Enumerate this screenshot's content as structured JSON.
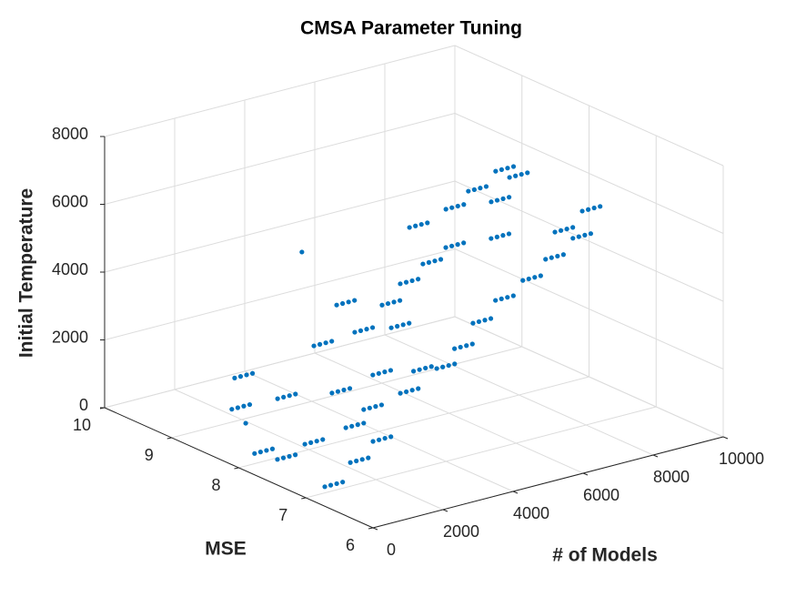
{
  "chart_data": {
    "type": "scatter3d",
    "title": "CMSA Parameter Tuning",
    "xlabel": "# of Models",
    "ylabel": "MSE",
    "zlabel": "Initial Temperature",
    "xlim": [
      0,
      10000
    ],
    "ylim": [
      6,
      10
    ],
    "zlim": [
      0,
      8000
    ],
    "xticks": [
      0,
      2000,
      4000,
      6000,
      8000,
      10000
    ],
    "yticks": [
      6,
      7,
      8,
      9,
      10
    ],
    "zticks": [
      0,
      2000,
      4000,
      6000,
      8000
    ],
    "grid": true,
    "series": [
      {
        "color": "#0072BD",
        "x": [
          2180,
          2350,
          2520,
          2690,
          2100,
          2270,
          2440,
          2610,
          2640,
          2810,
          2980,
          3150,
          450,
          620,
          790,
          960,
          720,
          890,
          1060,
          1230,
          310,
          480,
          650,
          820,
          1120,
          1290,
          1460,
          1630,
          1270,
          1440,
          1610,
          1780,
          2300,
          2470,
          2640,
          2810,
          2290,
          2460,
          2630,
          2800,
          2800,
          2970,
          3140,
          3310,
          2660,
          2830,
          3000,
          3170,
          2910,
          3080,
          3250,
          3420,
          3060,
          3230,
          3400,
          3570,
          3080,
          3250,
          3420,
          3590,
          3840,
          4010,
          4180,
          4350,
          4120,
          4290,
          4460,
          4630,
          5010,
          5180,
          5350,
          5520,
          5920,
          6090,
          6260,
          6430,
          3310,
          3480,
          3650,
          3820,
          3970,
          4140,
          4310,
          4480,
          4090,
          4260,
          4430,
          4600,
          4610,
          4780,
          4950,
          5120,
          5640,
          5810,
          5980,
          6150,
          5640,
          5810,
          5980,
          6150,
          5910,
          6080,
          6250,
          6420,
          6820,
          6990,
          7160,
          7330,
          6180,
          6350,
          6520,
          6690,
          6960,
          7130,
          7300,
          7470,
          7610,
          7780,
          7950,
          8120,
          8260,
          8430,
          8600,
          8770,
          8390,
          8560,
          8730,
          8900,
          9040,
          9210,
          9380,
          9550,
          8100,
          8270,
          8440,
          8610,
          7730,
          7900,
          8070,
          8240,
          7590,
          7760,
          7930,
          8100,
          6680,
          6850,
          7020,
          7190,
          7320,
          7490,
          7660,
          7830,
          3560,
          3730,
          3900,
          4070,
          1730,
          4100
        ],
        "y": [
          9.2,
          9.2,
          9.2,
          9.2,
          9.2,
          9.2,
          9.2,
          9.2,
          8.8,
          8.8,
          8.8,
          8.8,
          8.0,
          8.0,
          8.0,
          8.0,
          7.8,
          7.8,
          7.8,
          7.8,
          6.88,
          6.88,
          6.88,
          6.88,
          7.6,
          7.6,
          7.6,
          7.6,
          7.0,
          7.0,
          7.0,
          7.0,
          7.2,
          7.2,
          7.2,
          7.2,
          7.6,
          7.6,
          7.6,
          7.6,
          7.6,
          7.6,
          7.6,
          7.6,
          8.0,
          8.0,
          8.0,
          8.0,
          8.4,
          8.4,
          8.4,
          8.4,
          7.6,
          7.6,
          7.6,
          7.6,
          7.2,
          7.2,
          7.2,
          7.2,
          7.4,
          7.4,
          7.4,
          7.4,
          7.2,
          7.2,
          7.2,
          7.2,
          7.4,
          7.4,
          7.4,
          7.4,
          7.6,
          7.6,
          7.6,
          7.6,
          8.0,
          8.0,
          8.0,
          8.0,
          7.8,
          7.8,
          7.8,
          7.8,
          8.0,
          8.0,
          8.0,
          8.0,
          8.0,
          8.0,
          8.0,
          8.0,
          8.2,
          8.2,
          8.2,
          8.2,
          8.4,
          8.4,
          8.4,
          8.4,
          8.0,
          8.0,
          8.0,
          8.0,
          7.8,
          7.8,
          7.8,
          7.8,
          7.4,
          7.4,
          7.4,
          7.4,
          7.4,
          7.4,
          7.4,
          7.4,
          7.4,
          7.4,
          7.4,
          7.4,
          7.6,
          7.6,
          7.6,
          7.6,
          7.4,
          7.4,
          7.4,
          7.4,
          7.6,
          7.6,
          7.6,
          7.6,
          8.4,
          8.4,
          8.4,
          8.4,
          8.0,
          8.0,
          8.0,
          8.0,
          8.2,
          8.2,
          8.2,
          8.2,
          8.4,
          8.4,
          8.4,
          8.4,
          8.4,
          8.4,
          8.4,
          8.4,
          8.4,
          8.4,
          8.4,
          8.4,
          8.8,
          9.2
        ],
        "z": [
          1000,
          1000,
          1000,
          1000,
          100,
          100,
          100,
          100,
          620,
          620,
          620,
          620,
          300,
          300,
          300,
          300,
          230,
          230,
          230,
          230,
          350,
          350,
          350,
          350,
          750,
          750,
          750,
          750,
          700,
          700,
          700,
          700,
          870,
          870,
          870,
          870,
          920,
          920,
          920,
          920,
          1320,
          1320,
          1320,
          1320,
          1490,
          1490,
          1490,
          1490,
          2460,
          2460,
          2460,
          2460,
          2270,
          2270,
          2270,
          2270,
          2080,
          2080,
          2080,
          2080,
          2350,
          2350,
          2350,
          2350,
          2530,
          2530,
          2530,
          2530,
          2700,
          2700,
          2700,
          2700,
          3030,
          3030,
          3030,
          3030,
          3110,
          3110,
          3110,
          3110,
          3240,
          3240,
          3240,
          3240,
          3700,
          3700,
          3700,
          3700,
          4190,
          4190,
          4190,
          4190,
          4320,
          4320,
          4320,
          4320,
          5220,
          5220,
          5220,
          5220,
          4910,
          4910,
          4910,
          4910,
          5110,
          5110,
          5110,
          5110,
          3810,
          3810,
          3810,
          3810,
          4190,
          4190,
          4190,
          4190,
          4640,
          4640,
          4640,
          4640,
          5090,
          5090,
          5090,
          5090,
          5050,
          5050,
          5050,
          5050,
          5500,
          5500,
          5500,
          5500,
          6220,
          6220,
          6220,
          6220,
          6490,
          6490,
          6490,
          6490,
          5630,
          5630,
          5630,
          5630,
          5480,
          5480,
          5480,
          5480,
          5840,
          5840,
          5840,
          5840,
          3490,
          3490,
          3490,
          3490,
          140,
          4200
        ]
      }
    ]
  }
}
